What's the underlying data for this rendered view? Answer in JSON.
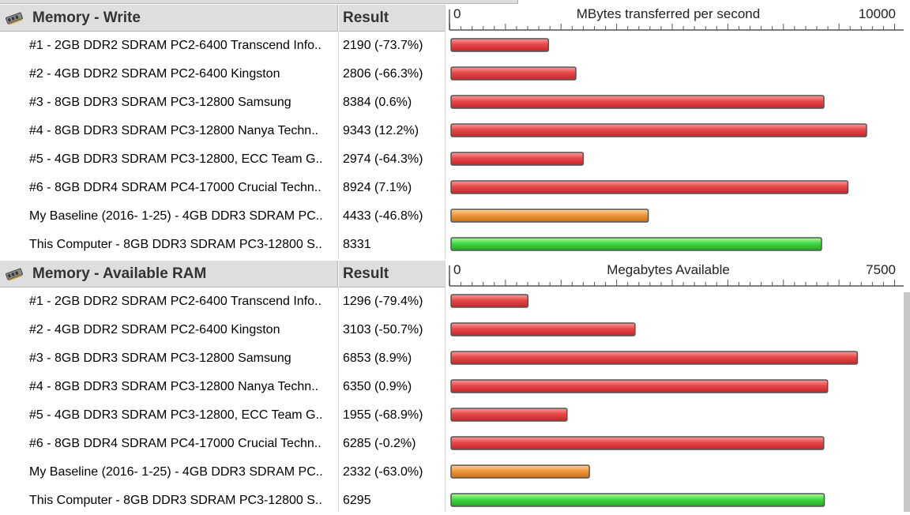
{
  "sections": [
    {
      "title": "Memory - Write",
      "result_label": "Result",
      "axis_title": "MBytes transferred per second",
      "axis_min_label": "0",
      "axis_max_label": "10000",
      "rows": [
        {
          "name": "#1 - 2GB DDR2 SDRAM PC2-6400 Transcend Info..",
          "result": "2190 (-73.7%)"
        },
        {
          "name": "#2 - 4GB DDR2 SDRAM PC2-6400 Kingston",
          "result": "2806 (-66.3%)"
        },
        {
          "name": "#3 - 8GB DDR3 SDRAM PC3-12800 Samsung",
          "result": "8384 (0.6%)"
        },
        {
          "name": "#4 - 8GB DDR3 SDRAM PC3-12800 Nanya Techn..",
          "result": "9343 (12.2%)"
        },
        {
          "name": "#5 - 4GB DDR3 SDRAM PC3-12800, ECC Team G..",
          "result": "2974 (-64.3%)"
        },
        {
          "name": "#6 - 8GB DDR4 SDRAM PC4-17000 Crucial Techn..",
          "result": "8924 (7.1%)"
        },
        {
          "name": "My Baseline (2016- 1-25) - 4GB DDR3 SDRAM PC..",
          "result": "4433 (-46.8%)"
        },
        {
          "name": "This Computer - 8GB DDR3 SDRAM PC3-12800 S..",
          "result": "8331"
        }
      ]
    },
    {
      "title": "Memory - Available RAM",
      "result_label": "Result",
      "axis_title": "Megabytes Available",
      "axis_min_label": "0",
      "axis_max_label": "7500",
      "rows": [
        {
          "name": "#1 - 2GB DDR2 SDRAM PC2-6400 Transcend Info..",
          "result": "1296 (-79.4%)"
        },
        {
          "name": "#2 - 4GB DDR2 SDRAM PC2-6400 Kingston",
          "result": "3103 (-50.7%)"
        },
        {
          "name": "#3 - 8GB DDR3 SDRAM PC3-12800 Samsung",
          "result": "6853 (8.9%)"
        },
        {
          "name": "#4 - 8GB DDR3 SDRAM PC3-12800 Nanya Techn..",
          "result": "6350 (0.9%)"
        },
        {
          "name": "#5 - 4GB DDR3 SDRAM PC3-12800, ECC Team G..",
          "result": "1955 (-68.9%)"
        },
        {
          "name": "#6 - 8GB DDR4 SDRAM PC4-17000 Crucial Techn..",
          "result": "6285 (-0.2%)"
        },
        {
          "name": "My Baseline (2016- 1-25) - 4GB DDR3 SDRAM PC..",
          "result": "2332 (-63.0%)"
        },
        {
          "name": "This Computer - 8GB DDR3 SDRAM PC3-12800 S..",
          "result": "6295"
        }
      ]
    }
  ],
  "icons": {
    "section_icon": "memory-module-icon"
  },
  "colors": {
    "comparison": "#e84848",
    "baseline": "#f09a40",
    "this_computer": "#44d844"
  },
  "chart_data": [
    {
      "type": "bar",
      "orientation": "horizontal",
      "title": "Memory - Write",
      "xlabel": "MBytes transferred per second",
      "xlim": [
        0,
        10000
      ],
      "categories": [
        "#1 - 2GB DDR2 SDRAM PC2-6400 Transcend Info..",
        "#2 - 4GB DDR2 SDRAM PC2-6400 Kingston",
        "#3 - 8GB DDR3 SDRAM PC3-12800 Samsung",
        "#4 - 8GB DDR3 SDRAM PC3-12800 Nanya Techn..",
        "#5 - 4GB DDR3 SDRAM PC3-12800, ECC Team G..",
        "#6 - 8GB DDR4 SDRAM PC4-17000 Crucial Techn..",
        "My Baseline (2016- 1-25) - 4GB DDR3 SDRAM PC..",
        "This Computer - 8GB DDR3 SDRAM PC3-12800 S.."
      ],
      "values": [
        2190,
        2806,
        8384,
        9343,
        2974,
        8924,
        4433,
        8331
      ],
      "bar_kinds": [
        "comparison",
        "comparison",
        "comparison",
        "comparison",
        "comparison",
        "comparison",
        "baseline",
        "this_computer"
      ]
    },
    {
      "type": "bar",
      "orientation": "horizontal",
      "title": "Memory - Available RAM",
      "xlabel": "Megabytes Available",
      "xlim": [
        0,
        7500
      ],
      "categories": [
        "#1 - 2GB DDR2 SDRAM PC2-6400 Transcend Info..",
        "#2 - 4GB DDR2 SDRAM PC2-6400 Kingston",
        "#3 - 8GB DDR3 SDRAM PC3-12800 Samsung",
        "#4 - 8GB DDR3 SDRAM PC3-12800 Nanya Techn..",
        "#5 - 4GB DDR3 SDRAM PC3-12800, ECC Team G..",
        "#6 - 8GB DDR4 SDRAM PC4-17000 Crucial Techn..",
        "My Baseline (2016- 1-25) - 4GB DDR3 SDRAM PC..",
        "This Computer - 8GB DDR3 SDRAM PC3-12800 S.."
      ],
      "values": [
        1296,
        3103,
        6853,
        6350,
        1955,
        6285,
        2332,
        6295
      ],
      "bar_kinds": [
        "comparison",
        "comparison",
        "comparison",
        "comparison",
        "comparison",
        "comparison",
        "baseline",
        "this_computer"
      ]
    }
  ]
}
